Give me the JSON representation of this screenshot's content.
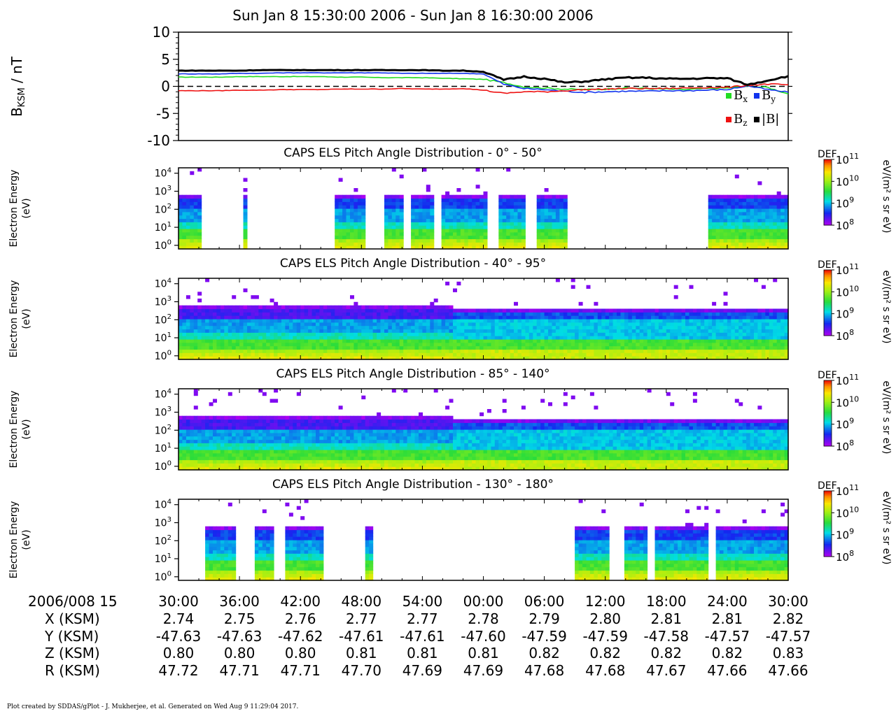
{
  "page_title": "Sun Jan 8 15:30:00 2006 - Sun Jan 8 16:30:00 2006",
  "footer": "Plot created by SDDAS/gPlot - J. Mukherjee, et al.  Generated on Wed Aug 9 11:29:04 2017.",
  "colors": {
    "bx": "#22dd22",
    "by": "#1133ee",
    "bz": "#ee1111",
    "btot": "#000000"
  },
  "colorbar": {
    "label": "DEF",
    "unit_text": "eV/(m² s sr eV)",
    "ticks": [
      {
        "base": "10",
        "exp": "11"
      },
      {
        "base": "10",
        "exp": "10"
      },
      {
        "base": "10",
        "exp": "9"
      },
      {
        "base": "10",
        "exp": "8"
      }
    ]
  },
  "chart_data": [
    {
      "type": "line",
      "ylabel_main": "B",
      "ylabel_sub": "KSM",
      "ylabel_tail": " / nT",
      "ylim": [
        -10,
        10
      ],
      "yticks": [
        "10",
        "5",
        "0",
        "-5",
        "-10"
      ],
      "ytick_values": [
        10,
        5,
        0,
        -5,
        -10
      ],
      "zero_line": "dashed",
      "x_minutes": [
        0,
        2,
        4,
        6,
        8,
        10,
        12,
        14,
        16,
        18,
        20,
        22,
        24,
        26,
        28,
        30,
        32,
        34,
        36,
        38,
        40,
        42,
        44,
        46,
        48,
        50,
        52,
        54,
        56,
        58,
        60
      ],
      "series": [
        {
          "name": "B",
          "sub": "x",
          "color_key": "bx",
          "values": [
            1.7,
            1.7,
            1.7,
            1.8,
            1.8,
            1.8,
            1.8,
            1.8,
            1.7,
            1.7,
            1.6,
            1.6,
            1.6,
            1.5,
            1.4,
            1.3,
            0.7,
            -0.1,
            -0.3,
            -0.5,
            -0.6,
            -0.5,
            -0.3,
            -0.4,
            -0.5,
            -0.6,
            -0.4,
            -0.3,
            0.0,
            -0.2,
            -1.4
          ]
        },
        {
          "name": "B",
          "sub": "y",
          "color_key": "by",
          "values": [
            2.3,
            2.3,
            2.3,
            2.4,
            2.4,
            2.5,
            2.5,
            2.5,
            2.5,
            2.5,
            2.5,
            2.4,
            2.4,
            2.4,
            2.4,
            2.3,
            0.4,
            -0.4,
            -0.6,
            -0.9,
            -1.1,
            -1.0,
            -0.9,
            -0.9,
            -0.8,
            -0.8,
            -0.7,
            -0.6,
            0.1,
            -0.6,
            -1.1
          ]
        },
        {
          "name": "B",
          "sub": "z",
          "color_key": "bz",
          "values": [
            -0.8,
            -0.8,
            -0.8,
            -0.7,
            -0.7,
            -0.6,
            -0.6,
            -0.6,
            -0.5,
            -0.5,
            -0.5,
            -0.4,
            -0.5,
            -0.5,
            -0.4,
            -0.7,
            -1.3,
            -1.0,
            -1.0,
            -0.8,
            -0.6,
            -0.5,
            -0.4,
            -0.4,
            -0.4,
            -0.3,
            -0.2,
            -0.2,
            0.2,
            0.4,
            0.3
          ]
        },
        {
          "name": "|B|",
          "sub": "",
          "color_key": "btot",
          "values": [
            2.9,
            2.9,
            2.9,
            2.9,
            3.0,
            3.0,
            3.0,
            3.0,
            3.0,
            3.0,
            3.0,
            3.0,
            3.0,
            2.9,
            2.9,
            2.7,
            1.2,
            1.8,
            1.4,
            0.7,
            0.9,
            1.3,
            1.6,
            1.6,
            1.4,
            1.4,
            1.5,
            1.5,
            0.3,
            1.1,
            1.9
          ]
        }
      ]
    },
    {
      "type": "heatmap",
      "title": "CAPS ELS Pitch Angle Distribution - 0° - 50°",
      "ylabel": [
        "Electron Energy",
        "(eV)"
      ],
      "yticks": [
        {
          "base": "10",
          "exp": "4"
        },
        {
          "base": "10",
          "exp": "3"
        },
        {
          "base": "10",
          "exp": "2"
        },
        {
          "base": "10",
          "exp": "1"
        },
        {
          "base": "10",
          "exp": "0"
        }
      ],
      "ylim_log10": [
        -0.2,
        4.3
      ],
      "blocks_minutes": [
        [
          0,
          2.1
        ],
        [
          6.5,
          6.9
        ],
        [
          15.5,
          18.2
        ],
        [
          20.4,
          22.2
        ],
        [
          23.0,
          25.3
        ],
        [
          26.0,
          30.4
        ],
        [
          31.4,
          34.0
        ],
        [
          35.4,
          38.2
        ],
        [
          52.2,
          60
        ]
      ]
    },
    {
      "type": "heatmap",
      "title": "CAPS ELS Pitch Angle Distribution - 40° - 95°",
      "ylabel": [
        "Electron Energy",
        "(eV)"
      ],
      "yticks": [
        {
          "base": "10",
          "exp": "4"
        },
        {
          "base": "10",
          "exp": "3"
        },
        {
          "base": "10",
          "exp": "2"
        },
        {
          "base": "10",
          "exp": "1"
        },
        {
          "base": "10",
          "exp": "0"
        }
      ],
      "ylim_log10": [
        -0.2,
        4.3
      ],
      "blocks_minutes": [
        [
          0,
          60
        ]
      ]
    },
    {
      "type": "heatmap",
      "title": "CAPS ELS Pitch Angle Distribution - 85° - 140°",
      "ylabel": [
        "Electron Energy",
        "(eV)"
      ],
      "yticks": [
        {
          "base": "10",
          "exp": "4"
        },
        {
          "base": "10",
          "exp": "3"
        },
        {
          "base": "10",
          "exp": "2"
        },
        {
          "base": "10",
          "exp": "1"
        },
        {
          "base": "10",
          "exp": "0"
        }
      ],
      "ylim_log10": [
        -0.2,
        4.3
      ],
      "blocks_minutes": [
        [
          0,
          60
        ]
      ]
    },
    {
      "type": "heatmap",
      "title": "CAPS ELS Pitch Angle Distribution - 130° - 180°",
      "ylabel": [
        "Electron Energy",
        "(eV)"
      ],
      "yticks": [
        {
          "base": "10",
          "exp": "4"
        },
        {
          "base": "10",
          "exp": "3"
        },
        {
          "base": "10",
          "exp": "2"
        },
        {
          "base": "10",
          "exp": "1"
        },
        {
          "base": "10",
          "exp": "0"
        }
      ],
      "ylim_log10": [
        -0.2,
        4.3
      ],
      "blocks_minutes": [
        [
          2.5,
          5.8
        ],
        [
          7.5,
          9.5
        ],
        [
          10.5,
          14.4
        ],
        [
          18.5,
          19.3
        ],
        [
          39.0,
          42.5
        ],
        [
          44.0,
          46.0
        ],
        [
          47.0,
          52.0
        ],
        [
          52.7,
          60
        ]
      ]
    }
  ],
  "x_axis": {
    "label": "2006/008 15",
    "ticks": [
      "30:00",
      "36:00",
      "42:00",
      "48:00",
      "54:00",
      "00:00",
      "06:00",
      "12:00",
      "18:00",
      "24:00",
      "30:00"
    ],
    "rows": [
      {
        "label": "X (KSM)",
        "values": [
          "2.74",
          "2.75",
          "2.76",
          "2.77",
          "2.77",
          "2.78",
          "2.79",
          "2.80",
          "2.81",
          "2.81",
          "2.82"
        ]
      },
      {
        "label": "Y (KSM)",
        "values": [
          "-47.63",
          "-47.63",
          "-47.62",
          "-47.61",
          "-47.61",
          "-47.60",
          "-47.59",
          "-47.59",
          "-47.58",
          "-47.57",
          "-47.57"
        ]
      },
      {
        "label": "Z (KSM)",
        "values": [
          "0.80",
          "0.80",
          "0.80",
          "0.81",
          "0.81",
          "0.81",
          "0.82",
          "0.82",
          "0.82",
          "0.82",
          "0.83"
        ]
      },
      {
        "label": "R (KSM)",
        "values": [
          "47.72",
          "47.71",
          "47.71",
          "47.70",
          "47.69",
          "47.69",
          "47.68",
          "47.68",
          "47.67",
          "47.66",
          "47.66"
        ]
      }
    ]
  }
}
